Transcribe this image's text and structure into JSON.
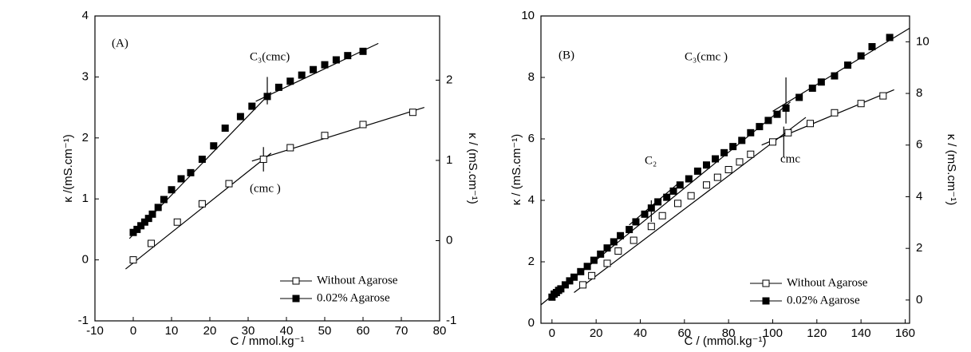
{
  "chart_data": [
    {
      "type": "scatter",
      "panel_label": "(A)",
      "x_label": "C / mmol.kg⁻¹",
      "y_label": "κ /(mS.cm⁻¹)",
      "y2_label": "κ / (mS.cm⁻¹)",
      "xlim": [
        -10,
        80
      ],
      "xticks": [
        -10,
        0,
        10,
        20,
        30,
        40,
        50,
        60,
        70,
        80
      ],
      "ylim": [
        -1,
        4
      ],
      "yticks": [
        -1,
        0,
        1,
        2,
        3,
        4
      ],
      "y2lim": [
        -1,
        2.8
      ],
      "y2ticks": [
        -1,
        0,
        1,
        2
      ],
      "legend": "lower right",
      "annotations": [
        "C₃(cmc)",
        "(cmc )"
      ],
      "series": [
        {
          "name": "Without Agarose",
          "color": "#000000",
          "fill": "#ffffff",
          "x": [
            0,
            4.7,
            11.5,
            18,
            25,
            34,
            41,
            50,
            60,
            73
          ],
          "values": [
            0,
            0.27,
            0.62,
            0.92,
            1.25,
            1.65,
            1.84,
            2.04,
            2.22,
            2.42
          ]
        },
        {
          "name": "0.02% Agarose",
          "color": "#000000",
          "fill": "#000000",
          "x": [
            0,
            1,
            2,
            3,
            4,
            5,
            6.5,
            8,
            10,
            12.5,
            15,
            18,
            21,
            24,
            28,
            31,
            35,
            38,
            41,
            44,
            47,
            50,
            53,
            56,
            60
          ],
          "values": [
            0.45,
            0.5,
            0.56,
            0.62,
            0.68,
            0.75,
            0.86,
            0.99,
            1.15,
            1.33,
            1.43,
            1.65,
            1.87,
            2.16,
            2.35,
            2.52,
            2.68,
            2.83,
            2.93,
            3.03,
            3.12,
            3.2,
            3.28,
            3.35,
            3.42
          ]
        }
      ],
      "fit_lines": [
        {
          "x": [
            -1,
            36
          ],
          "y": [
            0.35,
            2.75
          ]
        },
        {
          "x": [
            32,
            64
          ],
          "y": [
            2.6,
            3.55
          ]
        },
        {
          "x": [
            -2,
            36
          ],
          "y": [
            -0.15,
            1.75
          ]
        },
        {
          "x": [
            31,
            76
          ],
          "y": [
            1.62,
            2.5
          ]
        },
        {
          "x": [
            35,
            35
          ],
          "y": [
            2.55,
            3.0
          ]
        },
        {
          "x": [
            34,
            34
          ],
          "y": [
            1.45,
            1.85
          ]
        }
      ]
    },
    {
      "type": "scatter",
      "panel_label": "(B)",
      "x_label": "C / (mmol.kg⁻¹)",
      "y_label": "κ / (mS.cm⁻¹)",
      "y2_label": "κ / (mS.cm⁻¹)",
      "xlim": [
        -5,
        162
      ],
      "xticks": [
        0,
        20,
        40,
        60,
        80,
        100,
        120,
        140,
        160
      ],
      "ylim": [
        0,
        10
      ],
      "yticks": [
        0,
        2,
        4,
        6,
        8,
        10
      ],
      "y2lim": [
        -0.9,
        11
      ],
      "y2ticks": [
        0,
        2,
        4,
        6,
        8,
        10
      ],
      "legend": "lower right",
      "annotations": [
        "C₃(cmc )",
        "C₂",
        "cmc"
      ],
      "series": [
        {
          "name": "Without Agarose",
          "color": "#000000",
          "fill": "#ffffff",
          "x": [
            14,
            18,
            25,
            30,
            37,
            45,
            50,
            57,
            63,
            70,
            75,
            80,
            85,
            90,
            100,
            107,
            117,
            128,
            140,
            150
          ],
          "values": [
            1.25,
            1.55,
            1.95,
            2.35,
            2.7,
            3.15,
            3.5,
            3.9,
            4.15,
            4.5,
            4.75,
            5.0,
            5.25,
            5.5,
            5.9,
            6.2,
            6.5,
            6.85,
            7.15,
            7.4
          ]
        },
        {
          "name": "0.02% Agarose",
          "color": "#000000",
          "fill": "#000000",
          "x": [
            0,
            1,
            2,
            3,
            4,
            6,
            8,
            10,
            13,
            16,
            19,
            22,
            25,
            28,
            31,
            35,
            38,
            42,
            45,
            48,
            52,
            55,
            58,
            62,
            66,
            70,
            74,
            78,
            82,
            86,
            90,
            94,
            98,
            102,
            106,
            112,
            118,
            122,
            128,
            134,
            140,
            145,
            153
          ],
          "values": [
            0.85,
            0.95,
            1.0,
            1.07,
            1.12,
            1.25,
            1.38,
            1.5,
            1.68,
            1.85,
            2.05,
            2.25,
            2.45,
            2.65,
            2.85,
            3.05,
            3.3,
            3.55,
            3.75,
            3.95,
            4.1,
            4.3,
            4.5,
            4.7,
            4.95,
            5.15,
            5.35,
            5.55,
            5.75,
            5.95,
            6.2,
            6.4,
            6.6,
            6.8,
            7.0,
            7.35,
            7.65,
            7.85,
            8.05,
            8.4,
            8.7,
            9.0,
            9.3
          ]
        }
      ],
      "fit_lines": [
        {
          "x": [
            -5,
            108
          ],
          "y": [
            0.6,
            7.2
          ]
        },
        {
          "x": [
            100,
            162
          ],
          "y": [
            6.9,
            9.6
          ]
        },
        {
          "x": [
            10,
            115
          ],
          "y": [
            1.0,
            6.7
          ]
        },
        {
          "x": [
            95,
            155
          ],
          "y": [
            5.8,
            7.6
          ]
        },
        {
          "x": [
            35,
            58
          ],
          "y": [
            3.2,
            4.6
          ]
        },
        {
          "x": [
            106,
            106
          ],
          "y": [
            6.5,
            8.0
          ]
        },
        {
          "x": [
            105,
            105
          ],
          "y": [
            5.4,
            6.4
          ]
        },
        {
          "x": [
            45,
            45
          ],
          "y": [
            3.3,
            4.0
          ]
        }
      ]
    }
  ]
}
